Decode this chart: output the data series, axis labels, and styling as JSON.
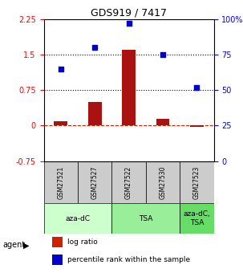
{
  "title": "GDS919 / 7417",
  "samples": [
    "GSM27521",
    "GSM27527",
    "GSM27522",
    "GSM27530",
    "GSM27523"
  ],
  "log_ratio": [
    0.1,
    0.5,
    1.6,
    0.15,
    -0.02
  ],
  "percentile_rank": [
    65,
    80,
    97,
    75,
    52
  ],
  "agents": [
    {
      "label": "aza-dC",
      "span": [
        0,
        2
      ],
      "color": "#ccffcc"
    },
    {
      "label": "TSA",
      "span": [
        2,
        4
      ],
      "color": "#99ee99"
    },
    {
      "label": "aza-dC,\nTSA",
      "span": [
        4,
        5
      ],
      "color": "#66dd66"
    }
  ],
  "ylim_left": [
    -0.75,
    2.25
  ],
  "ylim_right": [
    0,
    100
  ],
  "yticks_left": [
    -0.75,
    0.0,
    0.75,
    1.5,
    2.25
  ],
  "ytick_labels_left": [
    "-0.75",
    "0",
    "0.75",
    "1.5",
    "2.25"
  ],
  "yticks_right": [
    0,
    25,
    50,
    75,
    100
  ],
  "ytick_labels_right": [
    "0",
    "25",
    "50",
    "75",
    "100%"
  ],
  "hline_dashed_red": 0.0,
  "hline_dotted_black": [
    0.75,
    1.5
  ],
  "bar_color": "#aa1111",
  "dot_color": "#0000cc",
  "bar_width": 0.4,
  "legend_items": [
    {
      "color": "#cc2200",
      "label": "log ratio"
    },
    {
      "color": "#0000cc",
      "label": "percentile rank within the sample"
    }
  ],
  "agent_label": "agent",
  "sample_label_color": "#333333",
  "gray_row_color": "#cccccc"
}
